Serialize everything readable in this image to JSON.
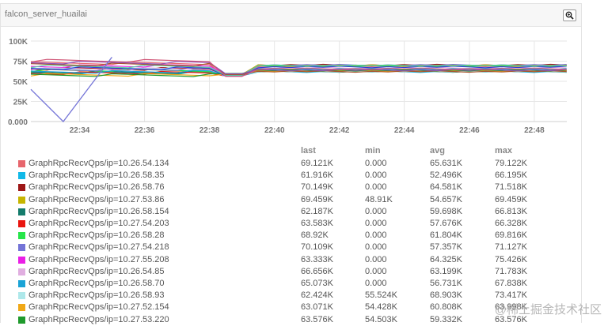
{
  "panel": {
    "title": "falcon_server_huailai"
  },
  "chart_data": {
    "type": "line",
    "y_ticks": [
      "100K",
      "75K",
      "50K",
      "25K",
      "0.000"
    ],
    "ylim": [
      0,
      100000
    ],
    "x_ticks": [
      "22:34",
      "22:36",
      "22:38",
      "22:40",
      "22:42",
      "22:44",
      "22:46",
      "22:48"
    ],
    "x_tick_values": [
      22.5667,
      22.6,
      22.6333,
      22.6667,
      22.7,
      22.7333,
      22.7667,
      22.8
    ],
    "xlim": [
      22.5417,
      22.8167
    ],
    "grid": true,
    "legend_columns": [
      "last",
      "min",
      "avg",
      "max"
    ],
    "series": [
      {
        "name": "GraphRpcRecvQps/ip=10.26.54.134",
        "color": "#e7666d",
        "last": "69.121K",
        "min": "0.000",
        "avg": "65.631K",
        "max": "79.122K"
      },
      {
        "name": "GraphRpcRecvQps/ip=10.26.58.35",
        "color": "#12b9e8",
        "last": "61.916K",
        "min": "0.000",
        "avg": "52.496K",
        "max": "66.195K"
      },
      {
        "name": "GraphRpcRecvQps/ip=10.26.58.76",
        "color": "#9d1717",
        "last": "70.149K",
        "min": "0.000",
        "avg": "64.581K",
        "max": "71.518K"
      },
      {
        "name": "GraphRpcRecvQps/ip=10.27.53.86",
        "color": "#c7b500",
        "last": "69.459K",
        "min": "48.91K",
        "avg": "54.657K",
        "max": "69.459K"
      },
      {
        "name": "GraphRpcRecvQps/ip=10.26.58.154",
        "color": "#137b6b",
        "last": "62.187K",
        "min": "0.000",
        "avg": "59.698K",
        "max": "66.813K"
      },
      {
        "name": "GraphRpcRecvQps/ip=10.27.54.203",
        "color": "#e9150f",
        "last": "63.583K",
        "min": "0.000",
        "avg": "57.676K",
        "max": "66.328K"
      },
      {
        "name": "GraphRpcRecvQps/ip=10.26.58.28",
        "color": "#26e54a",
        "last": "68.92K",
        "min": "0.000",
        "avg": "61.804K",
        "max": "69.816K"
      },
      {
        "name": "GraphRpcRecvQps/ip=10.27.54.218",
        "color": "#7474d7",
        "last": "70.109K",
        "min": "0.000",
        "avg": "57.357K",
        "max": "71.127K"
      },
      {
        "name": "GraphRpcRecvQps/ip=10.27.55.208",
        "color": "#ea1ee6",
        "last": "63.333K",
        "min": "0.000",
        "avg": "64.325K",
        "max": "75.426K"
      },
      {
        "name": "GraphRpcRecvQps/ip=10.26.54.85",
        "color": "#e0aee0",
        "last": "66.656K",
        "min": "0.000",
        "avg": "63.199K",
        "max": "71.783K"
      },
      {
        "name": "GraphRpcRecvQps/ip=10.26.58.70",
        "color": "#1aa3d6",
        "last": "65.073K",
        "min": "0.000",
        "avg": "56.731K",
        "max": "67.838K"
      },
      {
        "name": "GraphRpcRecvQps/ip=10.26.58.93",
        "color": "#aee8ea",
        "last": "62.424K",
        "min": "55.524K",
        "avg": "68.903K",
        "max": "73.417K"
      },
      {
        "name": "GraphRpcRecvQps/ip=10.27.52.154",
        "color": "#f0a817",
        "last": "63.071K",
        "min": "54.428K",
        "avg": "60.808K",
        "max": "63.998K"
      },
      {
        "name": "GraphRpcRecvQps/ip=10.27.53.220",
        "color": "#1f9a2c",
        "last": "63.576K",
        "min": "54.503K",
        "avg": "59.332K",
        "max": "63.576K"
      }
    ],
    "extra_line_colors": [
      "#2f3ed8",
      "#58c7a2",
      "#a8542b",
      "#8e4fb6",
      "#d15a7a"
    ]
  },
  "watermark": "@稀土掘金技术社区"
}
